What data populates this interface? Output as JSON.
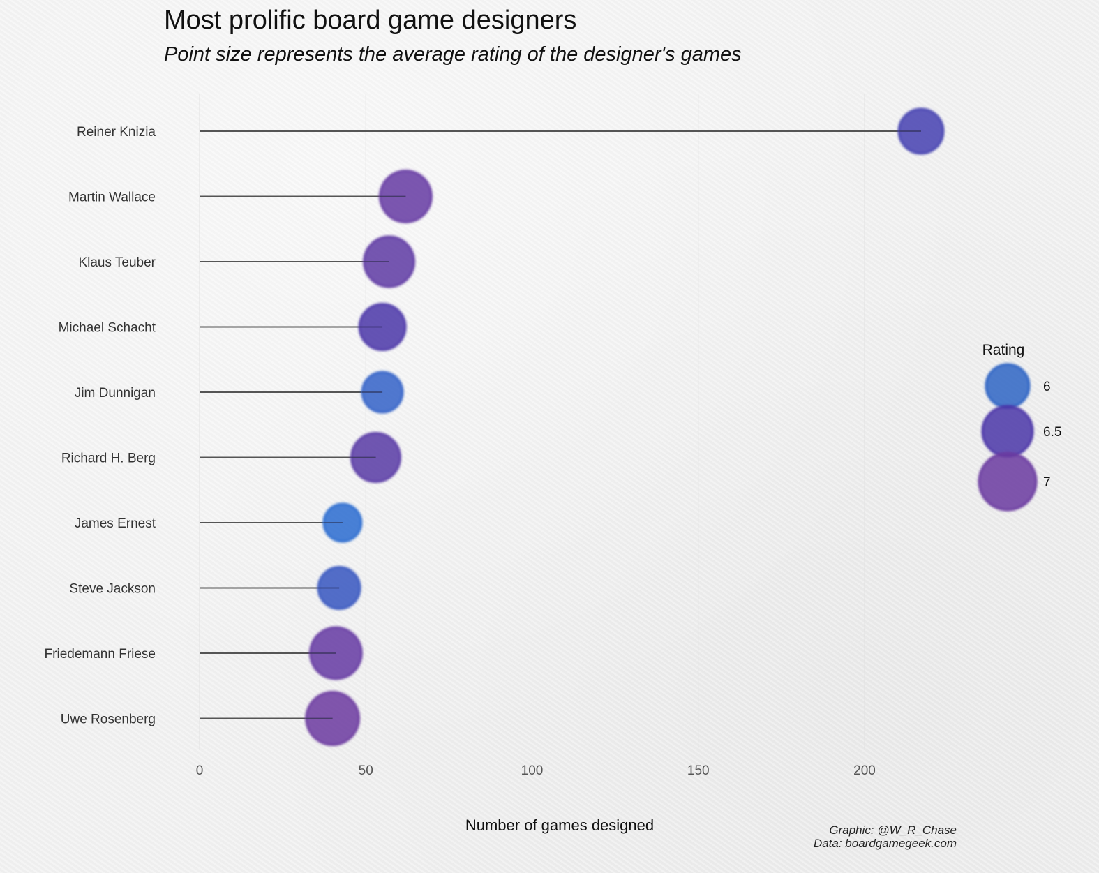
{
  "title": "Most prolific board game designers",
  "subtitle": "Point size represents the average rating of the designer's games",
  "caption": {
    "line1": "Graphic: @W_R_Chase",
    "line2": "Data: boardgamegeek.com"
  },
  "chart_data": {
    "type": "scatter",
    "categories": [
      "Reiner Knizia",
      "Martin Wallace",
      "Klaus Teuber",
      "Michael Schacht",
      "Jim Dunnigan",
      "Richard H. Berg",
      "James Ernest",
      "Steve Jackson",
      "Friedemann Friese",
      "Uwe Rosenberg"
    ],
    "values": [
      217,
      62,
      57,
      55,
      55,
      53,
      43,
      42,
      41,
      40
    ],
    "ratings": [
      6.4,
      6.9,
      6.8,
      6.5,
      6.1,
      6.7,
      5.9,
      6.2,
      6.9,
      7.0
    ],
    "xlabel": "Number of games designed",
    "ylabel": "",
    "xlim": [
      0,
      230
    ],
    "xticks": [
      0,
      50,
      100,
      150,
      200
    ],
    "grid": true,
    "legend": {
      "title": "Rating",
      "entries": [
        {
          "label": "6",
          "rating": 6,
          "color": "#2f64c4"
        },
        {
          "label": "6.5",
          "rating": 6.5,
          "color": "#4b36a8"
        },
        {
          "label": "7",
          "rating": 7,
          "color": "#6a3aa0"
        }
      ],
      "placement": "right"
    },
    "colors": {
      "low": "#2a6bd0",
      "mid": "#4b36a8",
      "high": "#6b3aa0",
      "segment": "#555555",
      "grid": "#e2e2e2"
    }
  }
}
